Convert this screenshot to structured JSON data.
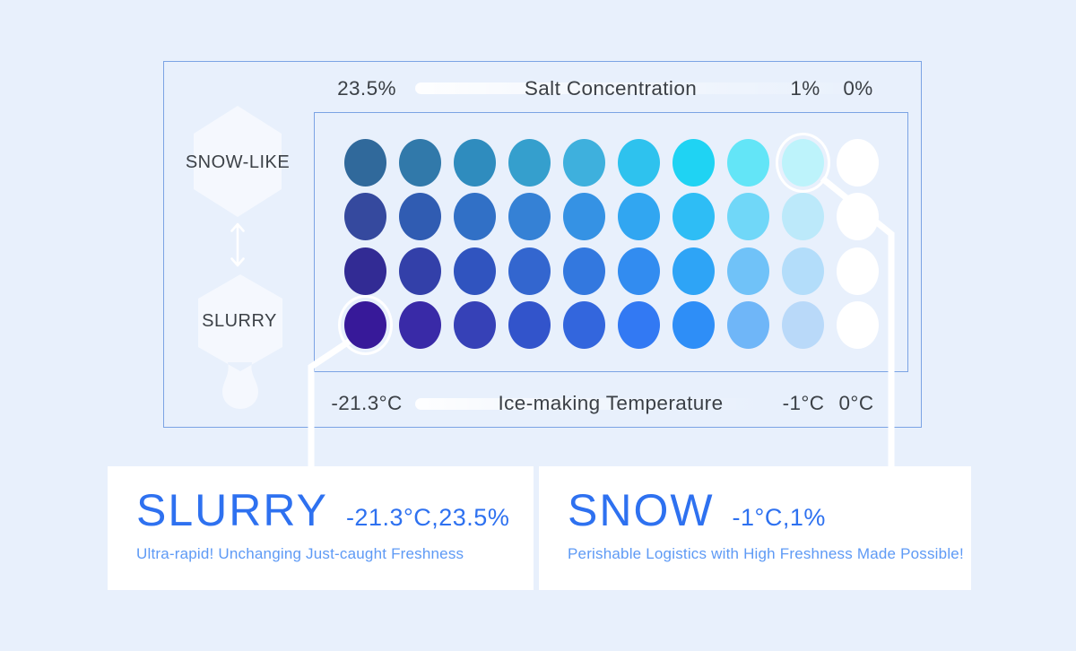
{
  "colors": {
    "bg": "#E8F0FC",
    "card": "#FFFFFF",
    "border": "#7BA3E4",
    "label": "#3B4046",
    "accent": "#2E71F0",
    "subtitle": "#5E9AF5",
    "connector": "#FFFFFF"
  },
  "axes": {
    "salt": {
      "title": "Salt Concentration",
      "low": "23.5%",
      "mid": "1%",
      "high": "0%"
    },
    "temp": {
      "title": "Ice-making Temperature",
      "low": "-21.3°C",
      "mid": "-1°C",
      "high": "0°C"
    },
    "rows": {
      "top": "SNOW-LIKE",
      "bottom": "SLURRY"
    }
  },
  "cards": {
    "slurry": {
      "title": "SLURRY",
      "value": "-21.3°C,23.5%",
      "desc": "Ultra-rapid! Unchanging Just-caught Freshness"
    },
    "snow": {
      "title": "SNOW",
      "value": "-1°C,1%",
      "desc": "Perishable Logistics with High Freshness Made Possible!"
    }
  },
  "chart_data": {
    "type": "heatmap",
    "title": "Ice type matrix: Salt Concentration vs Ice-making Temperature",
    "top_axis": {
      "label": "Salt Concentration",
      "ticks": [
        "23.5%",
        "1%",
        "0%"
      ],
      "tick_positions": [
        "column 1",
        "column 9",
        "column 10"
      ]
    },
    "bottom_axis": {
      "label": "Ice-making Temperature",
      "ticks": [
        "-21.3°C",
        "-1°C",
        "0°C"
      ],
      "tick_positions": [
        "column 1",
        "column 9",
        "column 10"
      ]
    },
    "y_axis": {
      "labels": [
        "SNOW-LIKE",
        "SLURRY"
      ],
      "top_row_meaning": "SNOW-LIKE",
      "bottom_row_meaning": "SLURRY"
    },
    "grid": {
      "rows": 4,
      "cols": 10
    },
    "cell_colors": [
      [
        "#30699B",
        "#3179AA",
        "#2F8CBE",
        "#359FCD",
        "#3EB0DD",
        "#2EC2EE",
        "#1FD3F3",
        "#63E5F7",
        "#BDF3FB",
        "#FFFFFF"
      ],
      [
        "#35499E",
        "#305CB2",
        "#3170C6",
        "#3581D5",
        "#3592E4",
        "#31A6F1",
        "#2EBDF5",
        "#70D7F8",
        "#BCE9FA",
        "#FFFFFF"
      ],
      [
        "#322B94",
        "#3340A9",
        "#3054BF",
        "#3366CF",
        "#3378DF",
        "#328CF0",
        "#2EA4F6",
        "#70C2F8",
        "#B3DDFA",
        "#FFFFFF"
      ],
      [
        "#371999",
        "#392AA7",
        "#3641B7",
        "#3254CB",
        "#3366DD",
        "#3279F3",
        "#2E8EF7",
        "#6FB6F8",
        "#B9D9F9",
        "#FFFFFF"
      ]
    ],
    "highlights": [
      {
        "row": 0,
        "col": 8,
        "name": "SNOW",
        "callout": "-1°C,1%"
      },
      {
        "row": 3,
        "col": 0,
        "name": "SLURRY",
        "callout": "-21.3°C,23.5%"
      }
    ],
    "legend_position": "bottom callout cards"
  }
}
